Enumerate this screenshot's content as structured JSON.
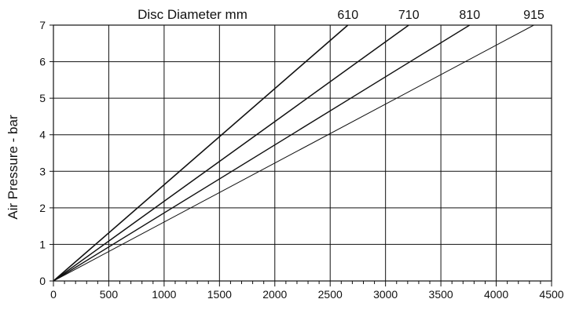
{
  "chart_data": {
    "type": "line",
    "title": "Disc Diameter mm",
    "xlabel": "",
    "ylabel": "Air Pressure - bar",
    "xlim": [
      0,
      4500
    ],
    "ylim": [
      0,
      7
    ],
    "grid": true,
    "x_ticks": [
      "0",
      "500",
      "1000",
      "1500",
      "2000",
      "2500",
      "3000",
      "3500",
      "4000",
      "4500"
    ],
    "y_ticks": [
      "0",
      "1",
      "2",
      "3",
      "4",
      "5",
      "6",
      "7"
    ],
    "series": [
      {
        "name": "610",
        "x": [
          0,
          2660
        ],
        "y": [
          0,
          7
        ]
      },
      {
        "name": "710",
        "x": [
          0,
          3210
        ],
        "y": [
          0,
          7
        ]
      },
      {
        "name": "810",
        "x": [
          0,
          3760
        ],
        "y": [
          0,
          7
        ]
      },
      {
        "name": "915",
        "x": [
          0,
          4340
        ],
        "y": [
          0,
          7
        ]
      }
    ]
  }
}
